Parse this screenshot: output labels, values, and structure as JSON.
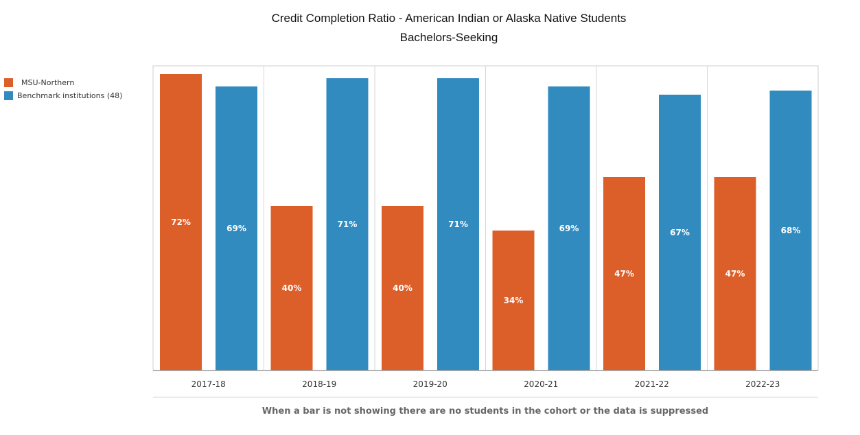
{
  "chart_data": {
    "type": "bar",
    "title": "Credit Completion Ratio - American Indian or Alaska Native Students",
    "subtitle": "Bachelors-Seeking",
    "categories": [
      "2017-18",
      "2018-19",
      "2019-20",
      "2020-21",
      "2021-22",
      "2022-23"
    ],
    "series": [
      {
        "name": "MSU-Northern",
        "values": [
          72,
          40,
          40,
          34,
          47,
          47
        ],
        "labels": [
          "72%",
          "40%",
          "40%",
          "34%",
          "47%",
          "47%"
        ],
        "color": "#dc5f2a"
      },
      {
        "name": "Benchmark institutions (48)",
        "values": [
          69,
          71,
          71,
          69,
          67,
          68
        ],
        "labels": [
          "69%",
          "71%",
          "71%",
          "69%",
          "67%",
          "68%"
        ],
        "color": "#318bbf"
      }
    ],
    "ylim": [
      0,
      74
    ],
    "legend_position": "top-left",
    "grid": "vertical separators"
  },
  "footnote": "When a bar is not showing there are no students in the cohort or the data is suppressed"
}
